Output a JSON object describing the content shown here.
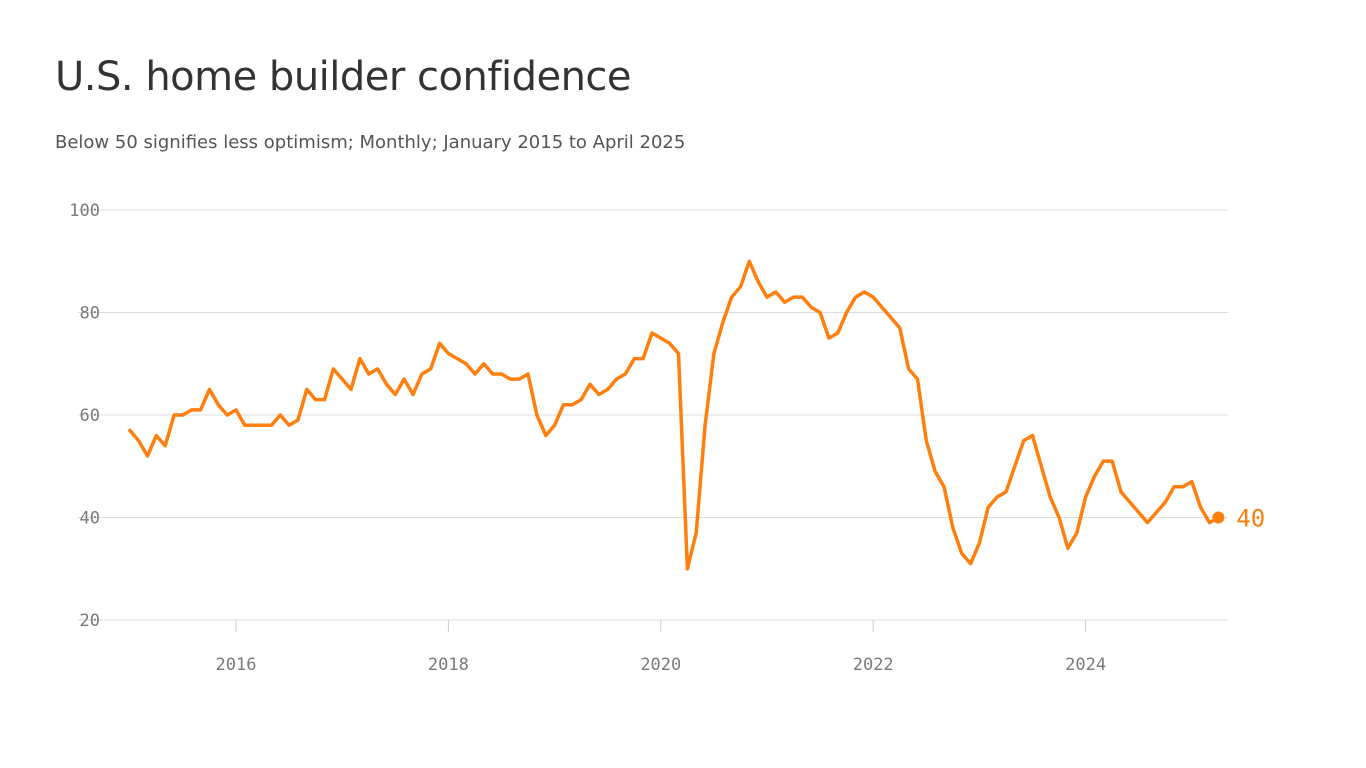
{
  "chart_data": {
    "type": "line",
    "title": "U.S. home builder confidence",
    "subtitle": "Below 50 signifies less optimism; Monthly; January 2015 to April 2025",
    "xlabel": "",
    "ylabel": "",
    "ylim": [
      20,
      100
    ],
    "yticks": [
      20,
      40,
      60,
      80,
      100
    ],
    "xticks": [
      {
        "value": 2016,
        "label": "2016"
      },
      {
        "value": 2018,
        "label": "2018"
      },
      {
        "value": 2020,
        "label": "2020"
      },
      {
        "value": 2022,
        "label": "2022"
      },
      {
        "value": 2024,
        "label": "2024"
      }
    ],
    "grid": true,
    "legend": "none",
    "color": "#ff7f0e",
    "series": [
      {
        "start": "2015-01",
        "frequency": "monthly",
        "values": [
          57,
          55,
          52,
          56,
          54,
          60,
          60,
          61,
          61,
          65,
          62,
          60,
          61,
          58,
          58,
          58,
          58,
          60,
          58,
          59,
          65,
          63,
          63,
          69,
          67,
          65,
          71,
          68,
          69,
          66,
          64,
          67,
          64,
          68,
          69,
          74,
          72,
          71,
          70,
          68,
          70,
          68,
          68,
          67,
          67,
          68,
          60,
          56,
          58,
          62,
          62,
          63,
          66,
          64,
          65,
          67,
          68,
          71,
          71,
          76,
          75,
          74,
          72,
          30,
          37,
          58,
          72,
          78,
          83,
          85,
          90,
          86,
          83,
          84,
          82,
          83,
          83,
          81,
          80,
          75,
          76,
          80,
          83,
          84,
          83,
          81,
          79,
          77,
          69,
          67,
          55,
          49,
          46,
          38,
          33,
          31,
          35,
          42,
          44,
          45,
          50,
          55,
          56,
          50,
          44,
          40,
          34,
          37,
          44,
          48,
          51,
          51,
          45,
          43,
          41,
          39,
          41,
          43,
          46,
          46,
          47,
          42,
          39,
          40
        ]
      }
    ],
    "end_label": "40"
  }
}
